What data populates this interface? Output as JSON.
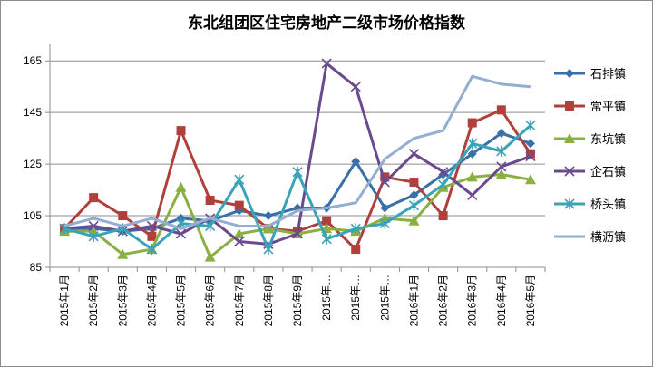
{
  "chart_data": {
    "type": "line",
    "title": "东北组团区住宅房地产二级市场价格指数",
    "xlabel": "",
    "ylabel": "",
    "categories": [
      "2015年1月",
      "2015年2月",
      "2015年3月",
      "2015年4月",
      "2015年5月",
      "2015年6月",
      "2015年7月",
      "2015年8月",
      "2015年9月",
      "2015年…",
      "2015年…",
      "2015年…",
      "2016年1月",
      "2016年2月",
      "2016年3月",
      "2016年4月",
      "2016年5月"
    ],
    "yticks": [
      "165",
      "145",
      "125",
      "105",
      "85"
    ],
    "ylim": [
      85,
      170
    ],
    "grid": "horizontal",
    "legend_position": "right",
    "series": [
      {
        "name": "石排镇",
        "color": "#3a6fa8",
        "marker": "diamond",
        "values": [
          100,
          100,
          99,
          100,
          104,
          103,
          107,
          105,
          108,
          108,
          126,
          108,
          113,
          121,
          129,
          137,
          133
        ]
      },
      {
        "name": "常平镇",
        "color": "#b0403c",
        "marker": "square",
        "values": [
          100,
          112,
          105,
          97,
          138,
          111,
          109,
          100,
          99,
          103,
          92,
          120,
          118,
          105,
          141,
          146,
          129
        ]
      },
      {
        "name": "东坑镇",
        "color": "#8ab043",
        "marker": "triangle",
        "values": [
          99,
          99,
          90,
          92,
          116,
          89,
          98,
          100,
          98,
          100,
          99,
          104,
          103,
          116,
          120,
          121,
          119
        ]
      },
      {
        "name": "企石镇",
        "color": "#6a4a8e",
        "marker": "x",
        "values": [
          100,
          101,
          99,
          101,
          98,
          104,
          95,
          94,
          98,
          164,
          155,
          118,
          129,
          122,
          113,
          124,
          128
        ]
      },
      {
        "name": "桥头镇",
        "color": "#3aa3b8",
        "marker": "asterisk",
        "values": [
          100,
          97,
          100,
          92,
          102,
          101,
          119,
          92,
          122,
          96,
          100,
          102,
          109,
          117,
          133,
          130,
          140
        ]
      },
      {
        "name": "横沥镇",
        "color": "#94aed2",
        "marker": "line",
        "values": [
          101,
          104,
          101,
          104,
          100,
          104,
          101,
          101,
          107,
          108,
          110,
          127,
          135,
          138,
          159,
          156,
          155
        ]
      }
    ]
  }
}
